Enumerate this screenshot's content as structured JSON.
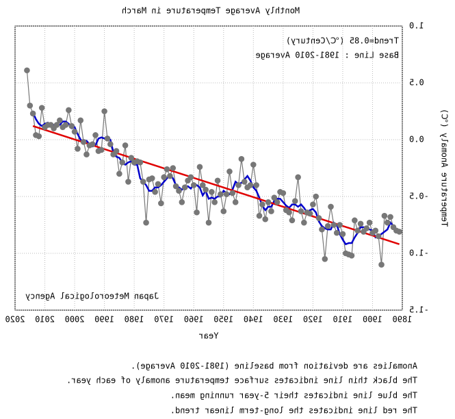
{
  "chart_data": {
    "type": "line",
    "title": "Monthly Average Temperature in March",
    "annotations": [
      "Trend=0.85 (℃/Century)",
      "Base Line : 1981-2010 Average",
      "Japan Meteorological Agency"
    ],
    "xlabel": "Year",
    "ylabel": "Temperature Anomaly (℃)",
    "notes": [
      "Anomalies are deviation from baseline (1981-2010 Average).",
      "The black thin line indicates surface temperature anomaly of each year.",
      "The blue line indicates their 5-year running mean.",
      "The red line indicates the long-term linear trend."
    ],
    "xlim": [
      1890,
      2020
    ],
    "xticks": [
      1890,
      1900,
      1910,
      1920,
      1930,
      1940,
      1950,
      1960,
      1970,
      1980,
      1990,
      2000,
      2010,
      2020
    ],
    "ylim": [
      -1.5,
      1.0
    ],
    "yticks": [
      -1.5,
      {
        "value": -1,
        "label": "-1.0"
      },
      -0.5,
      {
        "value": 0,
        "label": "0.0"
      },
      0.5,
      {
        "value": 1,
        "label": "1.0"
      }
    ],
    "grid": true,
    "x": [
      1891,
      1892,
      1893,
      1894,
      1895,
      1896,
      1897,
      1898,
      1899,
      1900,
      1901,
      1902,
      1903,
      1904,
      1905,
      1906,
      1907,
      1908,
      1909,
      1910,
      1911,
      1912,
      1913,
      1914,
      1915,
      1916,
      1917,
      1918,
      1919,
      1920,
      1921,
      1922,
      1923,
      1924,
      1925,
      1926,
      1927,
      1928,
      1929,
      1930,
      1931,
      1932,
      1933,
      1934,
      1935,
      1936,
      1937,
      1938,
      1939,
      1940,
      1941,
      1942,
      1943,
      1944,
      1945,
      1946,
      1947,
      1948,
      1949,
      1950,
      1951,
      1952,
      1953,
      1954,
      1955,
      1956,
      1957,
      1958,
      1959,
      1960,
      1961,
      1962,
      1963,
      1964,
      1965,
      1966,
      1967,
      1968,
      1969,
      1970,
      1971,
      1972,
      1973,
      1974,
      1975,
      1976,
      1977,
      1978,
      1979,
      1980,
      1981,
      1982,
      1983,
      1984,
      1985,
      1986,
      1987,
      1988,
      1989,
      1990,
      1991,
      1992,
      1993,
      1994,
      1995,
      1996,
      1997,
      1998,
      1999,
      2000,
      2001,
      2002,
      2003,
      2004,
      2005,
      2006,
      2007,
      2008,
      2009,
      2010,
      2011,
      2012,
      2013,
      2014,
      2015,
      2016
    ],
    "series": [
      {
        "color": "#777777",
        "markers": true,
        "values": [
          -0.81,
          -0.8,
          -0.77,
          -0.68,
          -0.73,
          -0.67,
          -1.1,
          -0.85,
          -0.8,
          -0.82,
          -0.73,
          -0.78,
          -0.81,
          -0.74,
          -0.8,
          -0.71,
          -1.02,
          -1.01,
          -1.0,
          -0.83,
          -0.75,
          -0.82,
          -0.75,
          -0.59,
          -0.76,
          -1.05,
          -0.79,
          -0.69,
          -0.5,
          -0.57,
          -0.65,
          -0.64,
          -0.73,
          -0.63,
          -0.33,
          -0.54,
          -0.71,
          -0.64,
          -0.62,
          -0.47,
          -0.46,
          -0.55,
          -0.51,
          -0.63,
          -0.55,
          -0.7,
          -0.57,
          -0.67,
          -0.4,
          -0.22,
          -0.4,
          -0.42,
          -0.37,
          -0.17,
          -0.4,
          -0.55,
          -0.47,
          -0.28,
          -0.48,
          -0.63,
          -0.48,
          -0.36,
          -0.55,
          -0.46,
          -0.73,
          -0.44,
          -0.4,
          -0.24,
          -0.64,
          -0.4,
          -0.33,
          -0.36,
          -0.42,
          -0.55,
          -0.45,
          -0.41,
          -0.25,
          -0.32,
          -0.26,
          -0.33,
          -0.56,
          -0.39,
          -0.46,
          -0.34,
          -0.35,
          -0.73,
          -0.37,
          -0.2,
          -0.19,
          -0.2,
          -0.16,
          -0.37,
          -0.05,
          -0.2,
          -0.3,
          -0.1,
          -0.13,
          -0.04,
          0.01,
          0.25,
          -0.09,
          -0.1,
          0.04,
          -0.04,
          -0.05,
          -0.13,
          -0.02,
          0.17,
          -0.08,
          0.07,
          0.12,
          0.26,
          0.13,
          0.11,
          0.17,
          0.13,
          0.1,
          0.13,
          0.13,
          0.11,
          0.28,
          0.03,
          0.04,
          0.23,
          0.3,
          0.61
        ]
      },
      {
        "color": "#0000cc",
        "values": [
          null,
          null,
          -0.76,
          -0.73,
          -0.79,
          -0.81,
          -0.83,
          -0.85,
          -0.86,
          -0.8,
          -0.79,
          -0.78,
          -0.77,
          -0.77,
          -0.82,
          -0.86,
          -0.91,
          -0.91,
          -0.92,
          -0.88,
          -0.83,
          -0.75,
          -0.73,
          -0.79,
          -0.79,
          -0.78,
          -0.76,
          -0.72,
          -0.64,
          -0.61,
          -0.62,
          -0.64,
          -0.6,
          -0.57,
          -0.59,
          -0.57,
          -0.57,
          -0.6,
          -0.58,
          -0.55,
          -0.52,
          -0.52,
          -0.54,
          -0.59,
          -0.59,
          -0.62,
          -0.58,
          -0.51,
          -0.45,
          -0.42,
          -0.36,
          -0.32,
          -0.35,
          -0.38,
          -0.39,
          -0.37,
          -0.44,
          -0.48,
          -0.47,
          -0.45,
          -0.5,
          -0.5,
          -0.52,
          -0.51,
          -0.52,
          -0.45,
          -0.49,
          -0.42,
          -0.4,
          -0.39,
          -0.43,
          -0.41,
          -0.42,
          -0.44,
          -0.42,
          -0.4,
          -0.34,
          -0.31,
          -0.34,
          -0.37,
          -0.4,
          -0.42,
          -0.42,
          -0.45,
          -0.45,
          -0.4,
          -0.37,
          -0.34,
          -0.22,
          -0.22,
          -0.19,
          -0.2,
          -0.22,
          -0.2,
          -0.16,
          -0.15,
          -0.11,
          0.0,
          0.0,
          0.01,
          0.02,
          0.01,
          -0.05,
          -0.06,
          -0.04,
          -0.01,
          -0.02,
          0.0,
          0.05,
          0.11,
          0.1,
          0.14,
          0.16,
          0.16,
          0.13,
          0.13,
          0.13,
          0.12,
          0.15,
          0.14,
          0.12,
          0.14,
          0.18,
          0.24,
          null,
          null
        ]
      },
      {
        "color": "#e00000",
        "x": [
          1891,
          2014
        ],
        "values": [
          -0.92,
          0.12
        ]
      }
    ]
  }
}
